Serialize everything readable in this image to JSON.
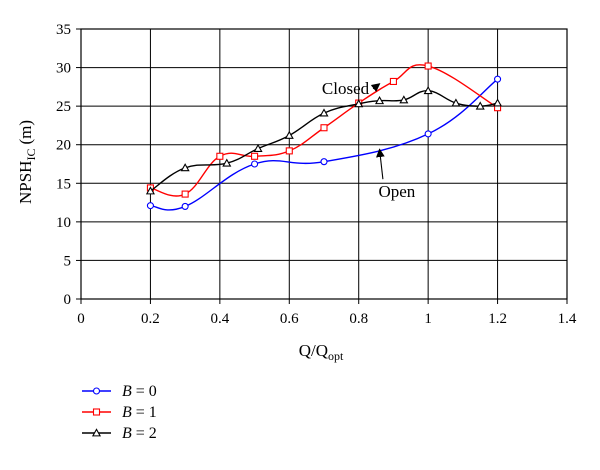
{
  "chart_data": {
    "type": "line",
    "title": "",
    "ylabel": {
      "main": "NPSH",
      "sub": "IC",
      "unit": "(m)"
    },
    "xlabel": {
      "main": "Q/Q",
      "sub": "opt"
    },
    "xlim": [
      0,
      1.4
    ],
    "ylim": [
      0,
      35
    ],
    "xticks": [
      0,
      0.2,
      0.4,
      0.6,
      0.8,
      1,
      1.2,
      1.4
    ],
    "yticks": [
      0,
      5,
      10,
      15,
      20,
      25,
      30,
      35
    ],
    "xtick_labels": [
      "0",
      "0.2",
      "0.4",
      "0.6",
      "0.8",
      "1",
      "1.2",
      "1.4"
    ],
    "ytick_labels": [
      "0",
      "5",
      "10",
      "15",
      "20",
      "25",
      "30",
      "35"
    ],
    "grid": true,
    "legend_position": "bottom-left",
    "series": [
      {
        "name_var": "B",
        "name_eq": " = 0",
        "color": "#0000ff",
        "marker": "circle",
        "x": [
          0.2,
          0.3,
          0.5,
          0.7,
          1.0,
          1.2
        ],
        "y": [
          12.1,
          12.0,
          17.5,
          17.8,
          21.4,
          28.5
        ]
      },
      {
        "name_var": "B",
        "name_eq": " = 1",
        "color": "#ff0000",
        "marker": "square",
        "x": [
          0.2,
          0.3,
          0.4,
          0.5,
          0.6,
          0.7,
          0.8,
          0.9,
          1.0,
          1.2
        ],
        "y": [
          14.4,
          13.6,
          18.5,
          18.5,
          19.2,
          22.2,
          25.4,
          28.2,
          30.2,
          24.8
        ]
      },
      {
        "name_var": "B",
        "name_eq": " = 2",
        "color": "#000000",
        "marker": "triangle",
        "x": [
          0.2,
          0.3,
          0.42,
          0.51,
          0.6,
          0.7,
          0.8,
          0.86,
          0.93,
          1.0,
          1.08,
          1.15,
          1.2
        ],
        "y": [
          14.0,
          17.0,
          17.6,
          19.5,
          21.2,
          24.1,
          25.3,
          25.7,
          25.8,
          27.0,
          25.4,
          25.0,
          25.4
        ]
      }
    ],
    "annotations": [
      {
        "text": "Closed",
        "x": 0.83,
        "y": 26.6,
        "arrow_to": [
          0.86,
          27.9
        ]
      },
      {
        "text": "Open",
        "x": 0.91,
        "y": 13.2,
        "arrow_to": [
          0.86,
          19.4
        ]
      }
    ]
  }
}
